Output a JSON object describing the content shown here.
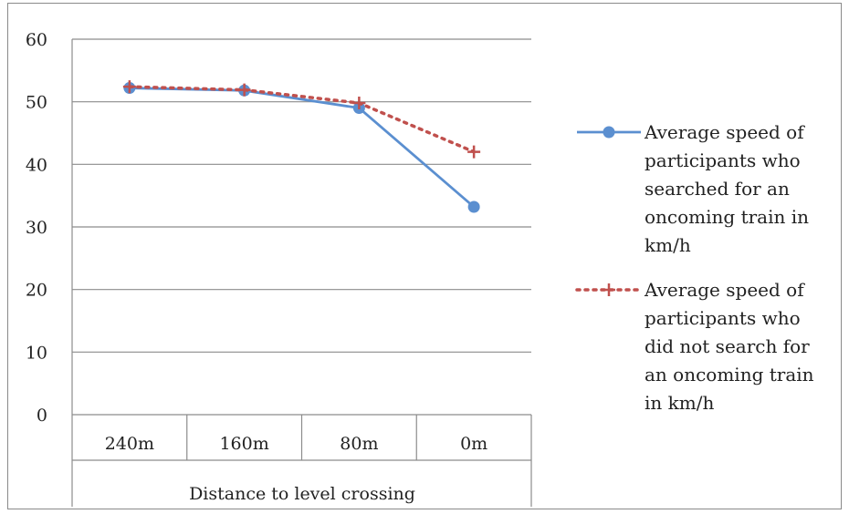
{
  "chart_data": {
    "type": "line",
    "categories": [
      "240m",
      "160m",
      "80m",
      "0m"
    ],
    "xlabel": "Distance to level crossing",
    "ylabel": "",
    "ylim": [
      0,
      60
    ],
    "yticks": [
      "0",
      "10",
      "20",
      "30",
      "40",
      "50",
      "60"
    ],
    "grid": true,
    "legend_position": "right",
    "series": [
      {
        "name": "Average speed of participants who searched for an oncoming train in km/h",
        "legend_lines": [
          "Average speed of",
          "participants who",
          "searched for an",
          "oncoming train in",
          "km/h"
        ],
        "values": [
          52.2,
          51.8,
          49.0,
          33.2
        ],
        "color": "#5b8fd0",
        "marker": "circle",
        "line_style": "solid"
      },
      {
        "name": "Average speed of participants who did not search for an oncoming train in km/h",
        "legend_lines": [
          "Average speed of",
          "participants who",
          "did not search for",
          "an oncoming train",
          "in km/h"
        ],
        "values": [
          52.4,
          51.9,
          49.8,
          42.0
        ],
        "color": "#c0504d",
        "marker": "plus",
        "line_style": "dotted"
      }
    ]
  }
}
